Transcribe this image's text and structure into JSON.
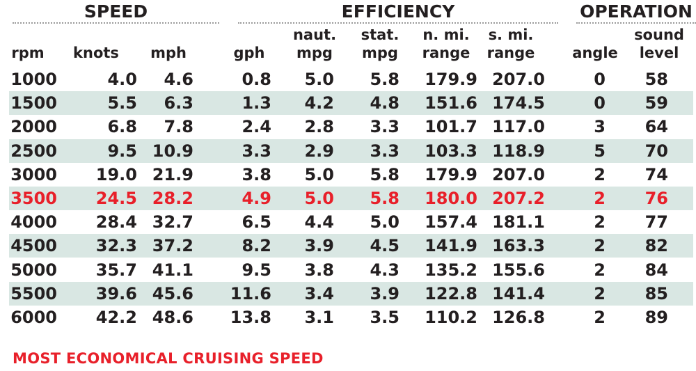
{
  "groups": [
    {
      "title": "SPEED"
    },
    {
      "title": "EFFICIENCY"
    },
    {
      "title": "OPERATION"
    }
  ],
  "columns": [
    {
      "line1": "",
      "line2": "rpm"
    },
    {
      "line1": "",
      "line2": "knots"
    },
    {
      "line1": "",
      "line2": "mph"
    },
    {
      "line1": "",
      "line2": "gph"
    },
    {
      "line1": "naut.",
      "line2": "mpg"
    },
    {
      "line1": "stat.",
      "line2": "mpg"
    },
    {
      "line1": "n. mi.",
      "line2": "range"
    },
    {
      "line1": "s. mi.",
      "line2": "range"
    },
    {
      "line1": "",
      "line2": "angle"
    },
    {
      "line1": "sound",
      "line2": "level"
    }
  ],
  "rows": [
    {
      "cells": [
        "1000",
        "4.0",
        "4.6",
        "0.8",
        "5.0",
        "5.8",
        "179.9",
        "207.0",
        "0",
        "58"
      ]
    },
    {
      "cells": [
        "1500",
        "5.5",
        "6.3",
        "1.3",
        "4.2",
        "4.8",
        "151.6",
        "174.5",
        "0",
        "59"
      ]
    },
    {
      "cells": [
        "2000",
        "6.8",
        "7.8",
        "2.4",
        "2.8",
        "3.3",
        "101.7",
        "117.0",
        "3",
        "64"
      ]
    },
    {
      "cells": [
        "2500",
        "9.5",
        "10.9",
        "3.3",
        "2.9",
        "3.3",
        "103.3",
        "118.9",
        "5",
        "70"
      ]
    },
    {
      "cells": [
        "3000",
        "19.0",
        "21.9",
        "3.8",
        "5.0",
        "5.8",
        "179.9",
        "207.0",
        "2",
        "74"
      ]
    },
    {
      "cells": [
        "3500",
        "24.5",
        "28.2",
        "4.9",
        "5.0",
        "5.8",
        "180.0",
        "207.2",
        "2",
        "76"
      ]
    },
    {
      "cells": [
        "4000",
        "28.4",
        "32.7",
        "6.5",
        "4.4",
        "5.0",
        "157.4",
        "181.1",
        "2",
        "77"
      ]
    },
    {
      "cells": [
        "4500",
        "32.3",
        "37.2",
        "8.2",
        "3.9",
        "4.5",
        "141.9",
        "163.3",
        "2",
        "82"
      ]
    },
    {
      "cells": [
        "5000",
        "35.7",
        "41.1",
        "9.5",
        "3.8",
        "4.3",
        "135.2",
        "155.6",
        "2",
        "84"
      ]
    },
    {
      "cells": [
        "5500",
        "39.6",
        "45.6",
        "11.6",
        "3.4",
        "3.9",
        "122.8",
        "141.4",
        "2",
        "85"
      ]
    },
    {
      "cells": [
        "6000",
        "42.2",
        "48.6",
        "13.8",
        "3.1",
        "3.5",
        "110.2",
        "126.8",
        "2",
        "89"
      ]
    }
  ],
  "footer": "MOST ECONOMICAL CRUISING SPEED",
  "colors": {
    "text": "#231f20",
    "highlight": "#e8202a",
    "row_shade": "#d9e7e3"
  },
  "chart_data": {
    "type": "table",
    "title": "",
    "column_groups": [
      {
        "name": "SPEED",
        "columns": [
          "rpm",
          "knots",
          "mph"
        ]
      },
      {
        "name": "EFFICIENCY",
        "columns": [
          "gph",
          "naut. mpg",
          "stat. mpg",
          "n. mi. range",
          "s. mi. range"
        ]
      },
      {
        "name": "OPERATION",
        "columns": [
          "angle",
          "sound level"
        ]
      }
    ],
    "columns": [
      "rpm",
      "knots",
      "mph",
      "gph",
      "naut. mpg",
      "stat. mpg",
      "n. mi. range",
      "s. mi. range",
      "angle",
      "sound level"
    ],
    "rows": [
      [
        1000,
        4.0,
        4.6,
        0.8,
        5.0,
        5.8,
        179.9,
        207.0,
        0,
        58
      ],
      [
        1500,
        5.5,
        6.3,
        1.3,
        4.2,
        4.8,
        151.6,
        174.5,
        0,
        59
      ],
      [
        2000,
        6.8,
        7.8,
        2.4,
        2.8,
        3.3,
        101.7,
        117.0,
        3,
        64
      ],
      [
        2500,
        9.5,
        10.9,
        3.3,
        2.9,
        3.3,
        103.3,
        118.9,
        5,
        70
      ],
      [
        3000,
        19.0,
        21.9,
        3.8,
        5.0,
        5.8,
        179.9,
        207.0,
        2,
        74
      ],
      [
        3500,
        24.5,
        28.2,
        4.9,
        5.0,
        5.8,
        180.0,
        207.2,
        2,
        76
      ],
      [
        4000,
        28.4,
        32.7,
        6.5,
        4.4,
        5.0,
        157.4,
        181.1,
        2,
        77
      ],
      [
        4500,
        32.3,
        37.2,
        8.2,
        3.9,
        4.5,
        141.9,
        163.3,
        2,
        82
      ],
      [
        5000,
        35.7,
        41.1,
        9.5,
        3.8,
        4.3,
        135.2,
        155.6,
        2,
        84
      ],
      [
        5500,
        39.6,
        45.6,
        11.6,
        3.4,
        3.9,
        122.8,
        141.4,
        2,
        85
      ],
      [
        6000,
        42.2,
        48.6,
        13.8,
        3.1,
        3.5,
        110.2,
        126.8,
        2,
        89
      ]
    ],
    "highlighted_row": 3500,
    "annotation": "MOST ECONOMICAL CRUISING SPEED (highlighted in red)"
  }
}
